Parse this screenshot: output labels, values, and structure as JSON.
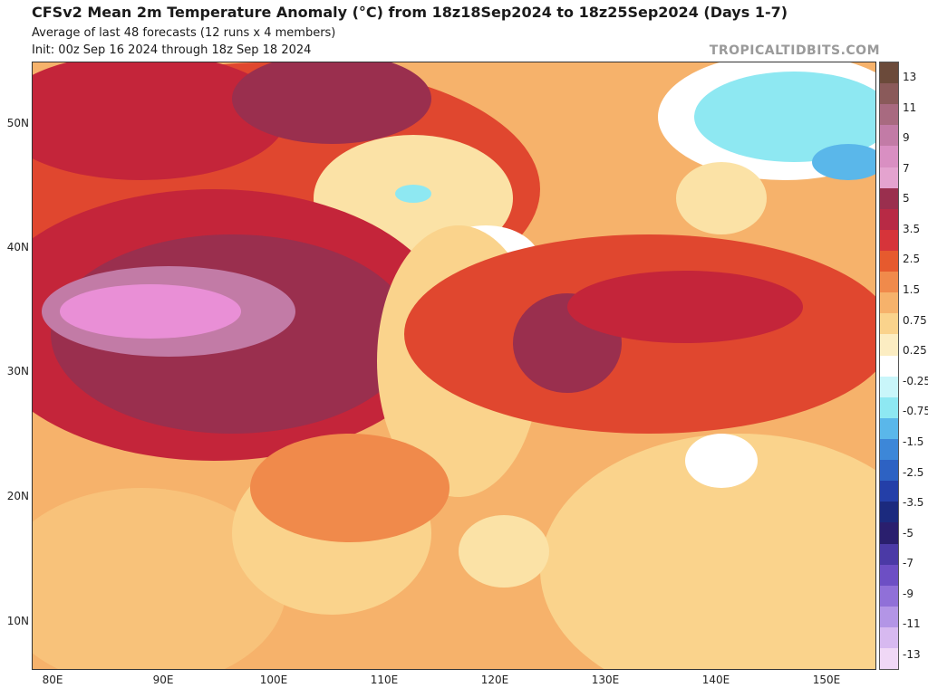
{
  "header": {
    "title": "CFSv2 Mean 2m Temperature Anomaly (°C) from 18z18Sep2024 to 18z25Sep2024 (Days 1-7)",
    "subtitle_line1": "Average of last 48 forecasts (12 runs x 4 members)",
    "subtitle_line2": "Init: 00z Sep 16 2024 through 18z Sep 18 2024",
    "credit": "TROPICALTIDBITS.COM"
  },
  "map": {
    "latitude_labels": [
      "50N",
      "40N",
      "30N",
      "20N",
      "10N"
    ],
    "longitude_labels": [
      "80E",
      "90E",
      "100E",
      "110E",
      "120E",
      "130E",
      "140E",
      "150E"
    ],
    "colors": {
      "hot_magenta": "#e98fd6",
      "dark_maroon": "#9a2f4e",
      "deep_red": "#c4253a",
      "red": "#e0472f",
      "orange": "#f08a4b",
      "light_orange": "#f6b26b",
      "pale_yellow": "#fbe2a6",
      "white": "#ffffff",
      "cyan": "#8ee8f2",
      "light_blue": "#5ab7ea",
      "mid_blue": "#3d87d8"
    }
  },
  "colorbar": {
    "labels": [
      "13",
      "11",
      "9",
      "7",
      "5",
      "3.5",
      "2.5",
      "1.5",
      "0.75",
      "0.25",
      "-0.25",
      "-0.75",
      "-1.5",
      "-2.5",
      "-3.5",
      "-5",
      "-7",
      "-9",
      "-11",
      "-13"
    ],
    "colors": [
      "#6b4a3a",
      "#8a5a5a",
      "#a86a80",
      "#c27ba6",
      "#d98fc2",
      "#e4a3cf",
      "#9a2f4e",
      "#b82a45",
      "#d6343a",
      "#e65a2e",
      "#f08a4b",
      "#f6b26b",
      "#fad38c",
      "#fcedc2",
      "#ffffff",
      "#c9f6fa",
      "#8ee8f2",
      "#5ab7ea",
      "#3d87d8",
      "#2d62c3",
      "#243fa8",
      "#1b2a7e",
      "#2a1f6e",
      "#4b3aa6",
      "#6d4fc4",
      "#9070d8",
      "#b395e6",
      "#d7b9f0",
      "#f0d8f6"
    ]
  }
}
